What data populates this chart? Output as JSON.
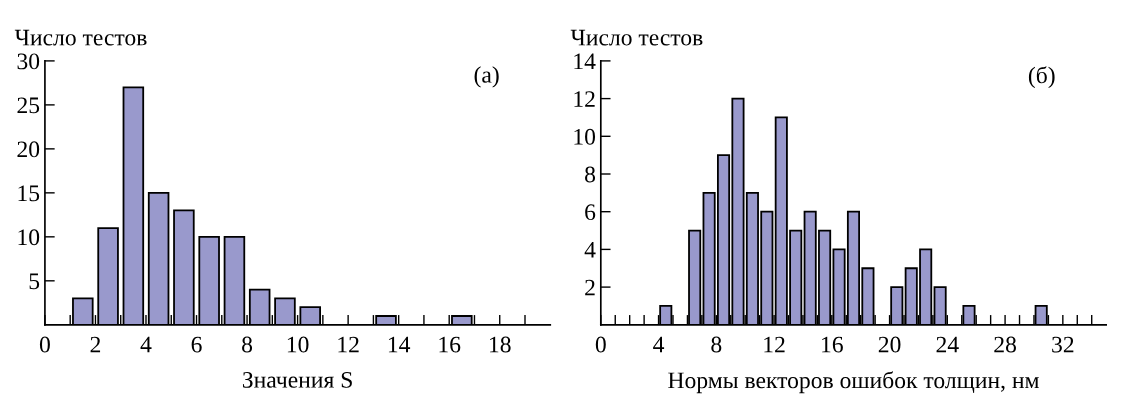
{
  "chart_data": [
    {
      "type": "histogram",
      "ylabel": "Число тестов",
      "xlabel": "Значения S",
      "annotations": [
        "(а)"
      ],
      "color": "#9999cc",
      "bins": [
        1,
        2,
        3,
        4,
        5,
        6,
        7,
        8,
        9,
        10,
        11,
        12,
        13,
        14,
        15,
        16,
        17
      ],
      "values": [
        3,
        11,
        27,
        15,
        13,
        10,
        10,
        4,
        3,
        2,
        0,
        0,
        1,
        0,
        0,
        1
      ],
      "xlim": [
        0,
        20
      ],
      "xticks": [
        0,
        {
          "value": 1,
          "label": null
        },
        2,
        {
          "value": 3,
          "label": null
        },
        4,
        {
          "value": 5,
          "label": null
        },
        6,
        {
          "value": 7,
          "label": null
        },
        8,
        {
          "value": 9,
          "label": null
        },
        10,
        {
          "value": 11,
          "label": null
        },
        12,
        {
          "value": 13,
          "label": null
        },
        14,
        {
          "value": 15,
          "label": null
        },
        16,
        {
          "value": 17,
          "label": null
        },
        18,
        {
          "value": 19,
          "label": null
        }
      ],
      "ylim": [
        0,
        30
      ],
      "yticks": [
        5,
        10,
        15,
        20,
        25,
        30
      ],
      "grid": false
    },
    {
      "type": "histogram",
      "ylabel": "Число тестов",
      "xlabel": "Нормы векторов ошибок толщин, нм",
      "annotations": [
        "(б)"
      ],
      "color": "#9999cc",
      "bins": [
        4,
        5,
        6,
        7,
        8,
        9,
        10,
        11,
        12,
        13,
        14,
        15,
        16,
        17,
        18,
        19,
        20,
        21,
        22,
        23,
        24,
        25,
        26,
        27,
        28,
        29,
        30,
        31
      ],
      "values": [
        1,
        0,
        5,
        7,
        9,
        12,
        7,
        6,
        11,
        5,
        6,
        5,
        4,
        6,
        3,
        0,
        2,
        3,
        4,
        2,
        0,
        1,
        0,
        0,
        0,
        0,
        1
      ],
      "xlim": [
        0,
        35
      ],
      "xticks": [
        0,
        {
          "value": 1,
          "label": null
        },
        {
          "value": 2,
          "label": null
        },
        {
          "value": 3,
          "label": null
        },
        4,
        {
          "value": 5,
          "label": null
        },
        {
          "value": 6,
          "label": null
        },
        {
          "value": 7,
          "label": null
        },
        8,
        {
          "value": 9,
          "label": null
        },
        {
          "value": 10,
          "label": null
        },
        {
          "value": 11,
          "label": null
        },
        12,
        {
          "value": 13,
          "label": null
        },
        {
          "value": 14,
          "label": null
        },
        {
          "value": 15,
          "label": null
        },
        16,
        {
          "value": 17,
          "label": null
        },
        {
          "value": 18,
          "label": null
        },
        {
          "value": 19,
          "label": null
        },
        20,
        {
          "value": 21,
          "label": null
        },
        {
          "value": 22,
          "label": null
        },
        {
          "value": 23,
          "label": null
        },
        24,
        {
          "value": 25,
          "label": null
        },
        {
          "value": 26,
          "label": null
        },
        {
          "value": 27,
          "label": null
        },
        28,
        {
          "value": 29,
          "label": null
        },
        {
          "value": 30,
          "label": null
        },
        {
          "value": 31,
          "label": null
        },
        32,
        {
          "value": 33,
          "label": null
        },
        {
          "value": 34,
          "label": null
        }
      ],
      "ylim": [
        0,
        14
      ],
      "yticks": [
        2,
        4,
        6,
        8,
        10,
        12,
        14
      ],
      "grid": false
    }
  ]
}
